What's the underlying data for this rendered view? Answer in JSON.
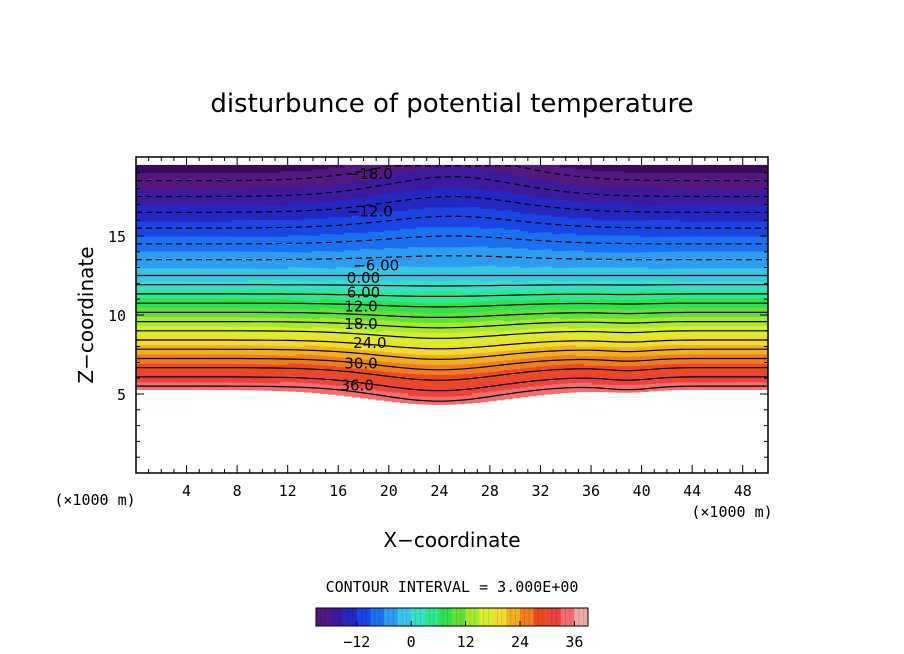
{
  "chart_data": {
    "type": "contour",
    "title": "disturbunce of potential temperature",
    "xlabel": "X−coordinate",
    "ylabel": "Z−coordinate",
    "x_unit_left": "(×1000 m)",
    "x_unit_right": "(×1000 m)",
    "xlim": [
      0,
      50
    ],
    "ylim": [
      0,
      20
    ],
    "xticks": [
      4,
      8,
      12,
      16,
      20,
      24,
      28,
      32,
      36,
      40,
      44,
      48
    ],
    "yticks": [
      5,
      10,
      15
    ],
    "contour_interval_label": "CONTOUR INTERVAL = 3.000E+00",
    "contour_interval": 3,
    "value_range": [
      -21,
      39
    ],
    "data_top_z": 19.5,
    "contour_labels": [
      {
        "text": "−18.0",
        "x": 18.5,
        "z": 19.0
      },
      {
        "text": "−12.0",
        "x": 18.5,
        "z": 16.6
      },
      {
        "text": "−6.00",
        "x": 19.0,
        "z": 13.2
      },
      {
        "text": "0.00",
        "x": 18.0,
        "z": 12.4
      },
      {
        "text": "6.00",
        "x": 18.0,
        "z": 11.5
      },
      {
        "text": "12.0",
        "x": 17.8,
        "z": 10.6
      },
      {
        "text": "18.0",
        "x": 17.8,
        "z": 9.5
      },
      {
        "text": "24.0",
        "x": 18.5,
        "z": 8.3
      },
      {
        "text": "30.0",
        "x": 17.8,
        "z": 7.0
      },
      {
        "text": "36.0",
        "x": 17.5,
        "z": 5.6
      }
    ],
    "colorbar": {
      "ticks": [
        -12,
        0,
        12,
        24,
        36
      ],
      "range": [
        -21,
        39
      ],
      "colors": [
        "#3a0a5a",
        "#5a1a8a",
        "#2a1aaa",
        "#1a3ae0",
        "#1a70f0",
        "#30a8f0",
        "#40d8e0",
        "#30e8a0",
        "#30e050",
        "#70e030",
        "#c8f030",
        "#f0e830",
        "#f0b020",
        "#f07020",
        "#e83020",
        "#f06060",
        "#f0a8a8"
      ]
    }
  }
}
